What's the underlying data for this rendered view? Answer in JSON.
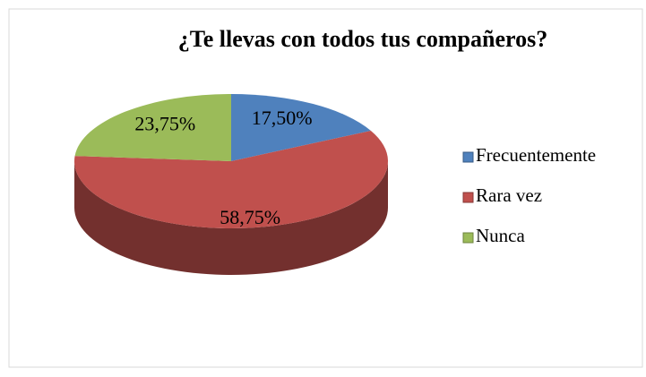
{
  "chart_data": {
    "type": "pie",
    "title": "¿Te llevas con todos tus compañeros?",
    "categories": [
      "Frecuentemente",
      "Rara vez",
      "Nunca"
    ],
    "values": [
      17.5,
      58.75,
      23.75
    ],
    "value_labels": [
      "17,50%",
      "58,75%",
      "23,75%"
    ],
    "colors": [
      "#4f81bd",
      "#c0504d",
      "#9bbb59"
    ],
    "legend": "right"
  }
}
